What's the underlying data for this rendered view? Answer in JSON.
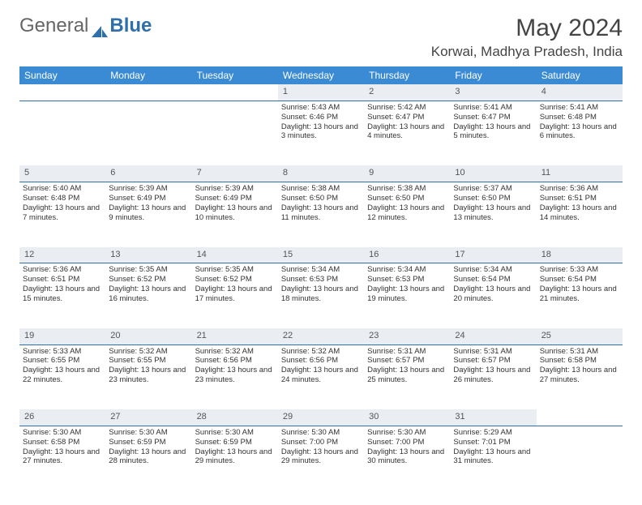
{
  "logo": {
    "text1": "General",
    "text2": "Blue"
  },
  "header": {
    "month_title": "May 2024",
    "location": "Korwai, Madhya Pradesh, India"
  },
  "colors": {
    "header_bg": "#3b8bd4",
    "header_text": "#ffffff",
    "daynum_bg": "#eaeef2",
    "rule": "#2f6fab",
    "logo_blue": "#2f6fab"
  },
  "day_names": [
    "Sunday",
    "Monday",
    "Tuesday",
    "Wednesday",
    "Thursday",
    "Friday",
    "Saturday"
  ],
  "weeks": [
    {
      "nums": [
        "",
        "",
        "",
        "1",
        "2",
        "3",
        "4"
      ],
      "cells": [
        null,
        null,
        null,
        {
          "sr": "5:43 AM",
          "ss": "6:46 PM",
          "dl": "13 hours and 3 minutes."
        },
        {
          "sr": "5:42 AM",
          "ss": "6:47 PM",
          "dl": "13 hours and 4 minutes."
        },
        {
          "sr": "5:41 AM",
          "ss": "6:47 PM",
          "dl": "13 hours and 5 minutes."
        },
        {
          "sr": "5:41 AM",
          "ss": "6:48 PM",
          "dl": "13 hours and 6 minutes."
        }
      ]
    },
    {
      "nums": [
        "5",
        "6",
        "7",
        "8",
        "9",
        "10",
        "11"
      ],
      "cells": [
        {
          "sr": "5:40 AM",
          "ss": "6:48 PM",
          "dl": "13 hours and 7 minutes."
        },
        {
          "sr": "5:39 AM",
          "ss": "6:49 PM",
          "dl": "13 hours and 9 minutes."
        },
        {
          "sr": "5:39 AM",
          "ss": "6:49 PM",
          "dl": "13 hours and 10 minutes."
        },
        {
          "sr": "5:38 AM",
          "ss": "6:50 PM",
          "dl": "13 hours and 11 minutes."
        },
        {
          "sr": "5:38 AM",
          "ss": "6:50 PM",
          "dl": "13 hours and 12 minutes."
        },
        {
          "sr": "5:37 AM",
          "ss": "6:50 PM",
          "dl": "13 hours and 13 minutes."
        },
        {
          "sr": "5:36 AM",
          "ss": "6:51 PM",
          "dl": "13 hours and 14 minutes."
        }
      ]
    },
    {
      "nums": [
        "12",
        "13",
        "14",
        "15",
        "16",
        "17",
        "18"
      ],
      "cells": [
        {
          "sr": "5:36 AM",
          "ss": "6:51 PM",
          "dl": "13 hours and 15 minutes."
        },
        {
          "sr": "5:35 AM",
          "ss": "6:52 PM",
          "dl": "13 hours and 16 minutes."
        },
        {
          "sr": "5:35 AM",
          "ss": "6:52 PM",
          "dl": "13 hours and 17 minutes."
        },
        {
          "sr": "5:34 AM",
          "ss": "6:53 PM",
          "dl": "13 hours and 18 minutes."
        },
        {
          "sr": "5:34 AM",
          "ss": "6:53 PM",
          "dl": "13 hours and 19 minutes."
        },
        {
          "sr": "5:34 AM",
          "ss": "6:54 PM",
          "dl": "13 hours and 20 minutes."
        },
        {
          "sr": "5:33 AM",
          "ss": "6:54 PM",
          "dl": "13 hours and 21 minutes."
        }
      ]
    },
    {
      "nums": [
        "19",
        "20",
        "21",
        "22",
        "23",
        "24",
        "25"
      ],
      "cells": [
        {
          "sr": "5:33 AM",
          "ss": "6:55 PM",
          "dl": "13 hours and 22 minutes."
        },
        {
          "sr": "5:32 AM",
          "ss": "6:55 PM",
          "dl": "13 hours and 23 minutes."
        },
        {
          "sr": "5:32 AM",
          "ss": "6:56 PM",
          "dl": "13 hours and 23 minutes."
        },
        {
          "sr": "5:32 AM",
          "ss": "6:56 PM",
          "dl": "13 hours and 24 minutes."
        },
        {
          "sr": "5:31 AM",
          "ss": "6:57 PM",
          "dl": "13 hours and 25 minutes."
        },
        {
          "sr": "5:31 AM",
          "ss": "6:57 PM",
          "dl": "13 hours and 26 minutes."
        },
        {
          "sr": "5:31 AM",
          "ss": "6:58 PM",
          "dl": "13 hours and 27 minutes."
        }
      ]
    },
    {
      "nums": [
        "26",
        "27",
        "28",
        "29",
        "30",
        "31",
        ""
      ],
      "cells": [
        {
          "sr": "5:30 AM",
          "ss": "6:58 PM",
          "dl": "13 hours and 27 minutes."
        },
        {
          "sr": "5:30 AM",
          "ss": "6:59 PM",
          "dl": "13 hours and 28 minutes."
        },
        {
          "sr": "5:30 AM",
          "ss": "6:59 PM",
          "dl": "13 hours and 29 minutes."
        },
        {
          "sr": "5:30 AM",
          "ss": "7:00 PM",
          "dl": "13 hours and 29 minutes."
        },
        {
          "sr": "5:30 AM",
          "ss": "7:00 PM",
          "dl": "13 hours and 30 minutes."
        },
        {
          "sr": "5:29 AM",
          "ss": "7:01 PM",
          "dl": "13 hours and 31 minutes."
        },
        null
      ]
    }
  ],
  "labels": {
    "sunrise": "Sunrise:",
    "sunset": "Sunset:",
    "daylight": "Daylight:"
  }
}
